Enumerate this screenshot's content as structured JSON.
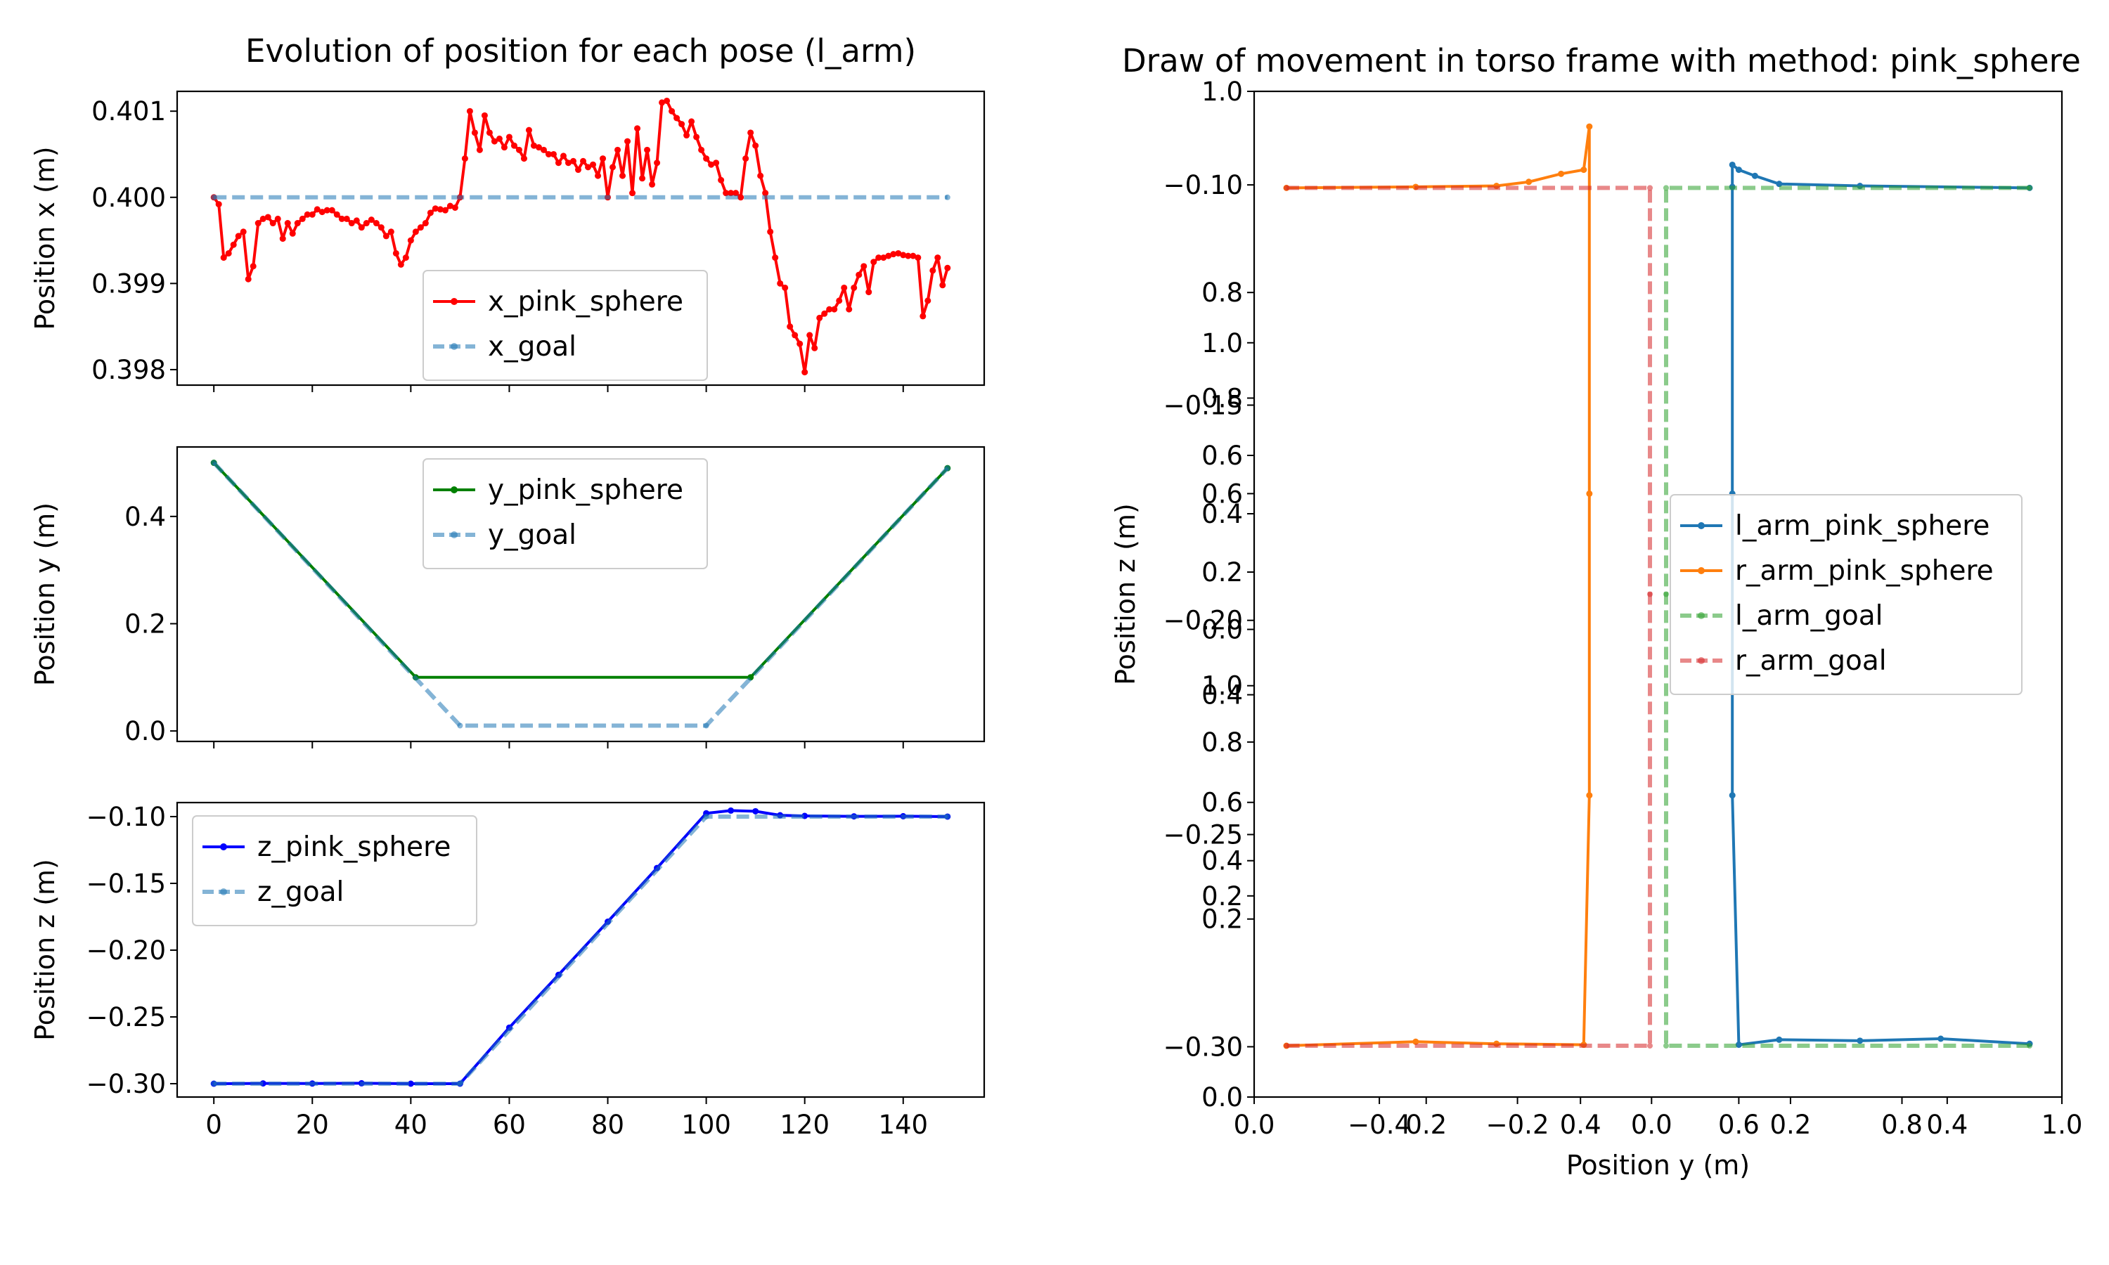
{
  "window": {
    "left_title": "Evolution of position for each pose (l_arm)",
    "right_title": "Draw of movement in torso frame with method: pink_sphere"
  },
  "chart_data": [
    {
      "id": "x_panel",
      "type": "line",
      "title": "Evolution of position for each pose (l_arm)",
      "xlabel": "",
      "ylabel": "Position x (m)",
      "xlim": [
        -7.45,
        156.45
      ],
      "ylim": [
        0.39782,
        0.40123
      ],
      "xticks": [
        0,
        20,
        40,
        60,
        80,
        100,
        120,
        140
      ],
      "yticks": [
        0.398,
        0.399,
        0.4,
        0.401
      ],
      "ytick_labels": [
        "0.398",
        "0.399",
        "0.400",
        "0.401"
      ],
      "legend": {
        "placement": "center-right"
      },
      "series": [
        {
          "name": "x_pink_sphere",
          "color": "#ff0000",
          "style": "solid",
          "x": [
            0,
            1,
            2,
            3,
            4,
            5,
            6,
            7,
            8,
            9,
            10,
            11,
            12,
            13,
            14,
            15,
            16,
            17,
            18,
            19,
            20,
            21,
            22,
            23,
            24,
            25,
            26,
            27,
            28,
            29,
            30,
            31,
            32,
            33,
            34,
            35,
            36,
            37,
            38,
            39,
            40,
            41,
            42,
            43,
            44,
            45,
            46,
            47,
            48,
            49,
            50,
            51,
            52,
            53,
            54,
            55,
            56,
            57,
            58,
            59,
            60,
            61,
            62,
            63,
            64,
            65,
            66,
            67,
            68,
            69,
            70,
            71,
            72,
            73,
            74,
            75,
            76,
            77,
            78,
            79,
            80,
            81,
            82,
            83,
            84,
            85,
            86,
            87,
            88,
            89,
            90,
            91,
            92,
            93,
            94,
            95,
            96,
            97,
            98,
            99,
            100,
            101,
            102,
            103,
            104,
            105,
            106,
            107,
            108,
            109,
            110,
            111,
            112,
            113,
            114,
            115,
            116,
            117,
            118,
            119,
            120,
            121,
            122,
            123,
            124,
            125,
            126,
            127,
            128,
            129,
            130,
            131,
            132,
            133,
            134,
            135,
            136,
            137,
            138,
            139,
            140,
            141,
            142,
            143,
            144,
            145,
            146,
            147,
            148,
            149
          ],
          "y": [
            0.4,
            0.39992,
            0.3993,
            0.39935,
            0.39945,
            0.39955,
            0.3996,
            0.39905,
            0.3992,
            0.3997,
            0.39975,
            0.39977,
            0.3997,
            0.39975,
            0.39952,
            0.3997,
            0.39958,
            0.3997,
            0.39975,
            0.3998,
            0.3998,
            0.39986,
            0.39983,
            0.39985,
            0.39985,
            0.3998,
            0.39975,
            0.39975,
            0.3997,
            0.39973,
            0.39965,
            0.3997,
            0.39974,
            0.3997,
            0.39965,
            0.39955,
            0.3996,
            0.39935,
            0.39922,
            0.3993,
            0.3995,
            0.3996,
            0.39965,
            0.3997,
            0.39982,
            0.39987,
            0.39986,
            0.39985,
            0.3999,
            0.39988,
            0.4,
            0.40045,
            0.401,
            0.40075,
            0.40055,
            0.40095,
            0.40075,
            0.40065,
            0.40068,
            0.40058,
            0.4007,
            0.4006,
            0.40055,
            0.40045,
            0.40078,
            0.4006,
            0.40058,
            0.40055,
            0.4005,
            0.4005,
            0.4004,
            0.40048,
            0.4004,
            0.40042,
            0.40032,
            0.40042,
            0.40035,
            0.40038,
            0.40025,
            0.40045,
            0.4,
            0.40035,
            0.40055,
            0.40025,
            0.40065,
            0.40005,
            0.4008,
            0.40022,
            0.40055,
            0.40015,
            0.4004,
            0.4011,
            0.40112,
            0.401,
            0.40092,
            0.40085,
            0.40072,
            0.40088,
            0.4007,
            0.40055,
            0.40045,
            0.40038,
            0.4004,
            0.4002,
            0.40005,
            0.40005,
            0.40005,
            0.4,
            0.40045,
            0.40075,
            0.4006,
            0.40025,
            0.40005,
            0.3996,
            0.3993,
            0.399,
            0.39895,
            0.3985,
            0.3984,
            0.3983,
            0.39797,
            0.3984,
            0.39825,
            0.3986,
            0.39865,
            0.3987,
            0.3987,
            0.3988,
            0.39895,
            0.3987,
            0.39895,
            0.3991,
            0.3992,
            0.3989,
            0.39925,
            0.3993,
            0.3993,
            0.39932,
            0.39934,
            0.39935,
            0.39933,
            0.39932,
            0.39932,
            0.3993,
            0.39862,
            0.3988,
            0.39915,
            0.3993,
            0.39898,
            0.39918
          ]
        },
        {
          "name": "x_goal",
          "color": "#1f77b4",
          "style": "dashed",
          "x": [
            0,
            149
          ],
          "y": [
            0.4,
            0.4
          ]
        }
      ]
    },
    {
      "id": "y_panel",
      "type": "line",
      "xlabel": "",
      "ylabel": "Position y (m)",
      "xlim": [
        -7.45,
        156.45
      ],
      "ylim": [
        -0.0195,
        0.5295
      ],
      "xticks": [
        0,
        20,
        40,
        60,
        80,
        100,
        120,
        140
      ],
      "yticks": [
        0.0,
        0.2,
        0.4
      ],
      "ytick_labels": [
        "0.0",
        "0.2",
        "0.4"
      ],
      "legend": {
        "placement": "upper center"
      },
      "series": [
        {
          "name": "y_pink_sphere",
          "color": "#008000",
          "style": "solid",
          "x": [
            0,
            41,
            109,
            149
          ],
          "y": [
            0.5,
            0.1,
            0.1,
            0.49
          ]
        },
        {
          "name": "y_goal",
          "color": "#1f77b4",
          "style": "dashed",
          "x": [
            0,
            50,
            100,
            149
          ],
          "y": [
            0.5,
            0.01,
            0.01,
            0.49
          ]
        }
      ]
    },
    {
      "id": "z_panel",
      "type": "line",
      "xlabel": "",
      "ylabel": "Position z (m)",
      "xlim": [
        -7.45,
        156.45
      ],
      "ylim": [
        -0.31,
        -0.0895
      ],
      "xticks": [
        0,
        20,
        40,
        60,
        80,
        100,
        120,
        140
      ],
      "xtick_labels": [
        "0",
        "20",
        "40",
        "60",
        "80",
        "100",
        "120",
        "140"
      ],
      "yticks": [
        -0.3,
        -0.25,
        -0.2,
        -0.15,
        -0.1
      ],
      "ytick_labels": [
        "−0.30",
        "−0.25",
        "−0.20",
        "−0.15",
        "−0.10"
      ],
      "legend": {
        "placement": "upper left"
      },
      "series": [
        {
          "name": "z_pink_sphere",
          "color": "#0000ff",
          "style": "solid",
          "x": [
            0,
            10,
            20,
            30,
            40,
            50,
            60,
            70,
            80,
            90,
            100,
            105,
            110,
            115,
            120,
            130,
            140,
            149
          ],
          "y": [
            -0.3,
            -0.2998,
            -0.2999,
            -0.2997,
            -0.3,
            -0.3,
            -0.258,
            -0.2185,
            -0.1787,
            -0.1385,
            -0.0975,
            -0.0955,
            -0.096,
            -0.099,
            -0.0995,
            -0.0998,
            -0.0997,
            -0.1
          ]
        },
        {
          "name": "z_goal",
          "color": "#1f77b4",
          "style": "dashed",
          "x": [
            0,
            50,
            100,
            149
          ],
          "y": [
            -0.3,
            -0.3,
            -0.1,
            -0.1
          ]
        }
      ]
    },
    {
      "id": "torso_frame",
      "type": "line",
      "title": "Draw of movement in torso frame with method: pink_sphere",
      "xlabel": "Position y (m)",
      "ylabel": "Position z (m)",
      "xlim": [
        0.0,
        1.0
      ],
      "ylim": [
        0.0,
        1.0
      ],
      "xticks": [
        0.0,
        0.6,
        1.0
      ],
      "xtick_labels": [
        "0.0",
        "0.6",
        "1.0"
      ],
      "yticks": [
        0.0,
        0.2,
        0.4,
        0.6,
        0.8,
        1.0
      ],
      "ytick_labels": [
        "0.0",
        "0.2",
        "0.4",
        "0.6",
        "0.8",
        "1.0"
      ],
      "overlapping_tick_labels": {
        "x": [
          [
            "−0.4",
            0.155
          ],
          [
            "0.2",
            0.213
          ],
          [
            "−0.2",
            0.326
          ],
          [
            "0.4",
            0.404
          ],
          [
            "0.0",
            0.492
          ],
          [
            "0.2",
            0.664
          ],
          [
            "0.8",
            0.802
          ],
          [
            "0.4",
            0.858
          ]
        ],
        "y": [
          [
            "1.0",
            0.75
          ],
          [
            "0.8",
            0.695
          ],
          [
            "0.6",
            0.638
          ],
          [
            "0.4",
            0.58
          ],
          [
            "0.2",
            0.522
          ],
          [
            "0.0",
            0.465
          ],
          [
            "1.0",
            0.409
          ],
          [
            "0.8",
            0.353
          ],
          [
            "0.6",
            0.293
          ],
          [
            "0.4",
            0.235
          ],
          [
            "0.2",
            0.177
          ],
          [
            "−0.10",
            0.907
          ],
          [
            "−0.15",
            0.688
          ],
          [
            "−0.20",
            0.474
          ],
          [
            "−0.25",
            0.261
          ],
          [
            "−0.30",
            0.05
          ]
        ]
      },
      "legend": {
        "placement": "center-right"
      },
      "series": [
        {
          "name": "l_arm_pink_sphere",
          "color": "#1f77b4",
          "style": "solid",
          "x": [
            0.96,
            0.75,
            0.65,
            0.62,
            0.6,
            0.592,
            0.592,
            0.592,
            0.592,
            0.6,
            0.65,
            0.75,
            0.85,
            0.96
          ],
          "y": [
            0.904,
            0.906,
            0.908,
            0.916,
            0.922,
            0.927,
            0.905,
            0.6,
            0.3,
            0.052,
            0.057,
            0.056,
            0.058,
            0.053
          ]
        },
        {
          "name": "r_arm_pink_sphere",
          "color": "#ff7f0e",
          "style": "solid",
          "x": [
            0.04,
            0.2,
            0.3,
            0.34,
            0.38,
            0.408,
            0.415,
            0.415,
            0.415,
            0.408,
            0.3,
            0.2,
            0.04
          ],
          "y": [
            0.904,
            0.905,
            0.906,
            0.91,
            0.918,
            0.922,
            0.965,
            0.6,
            0.3,
            0.052,
            0.053,
            0.055,
            0.051
          ]
        },
        {
          "name": "l_arm_goal",
          "color": "#2ca02c",
          "style": "dashed",
          "x": [
            0.96,
            0.51,
            0.51,
            0.51,
            0.96
          ],
          "y": [
            0.904,
            0.904,
            0.5,
            0.051,
            0.051
          ]
        },
        {
          "name": "r_arm_goal",
          "color": "#d62728",
          "style": "dashed",
          "x": [
            0.04,
            0.49,
            0.49,
            0.49,
            0.04
          ],
          "y": [
            0.904,
            0.904,
            0.5,
            0.051,
            0.051
          ]
        }
      ]
    }
  ]
}
